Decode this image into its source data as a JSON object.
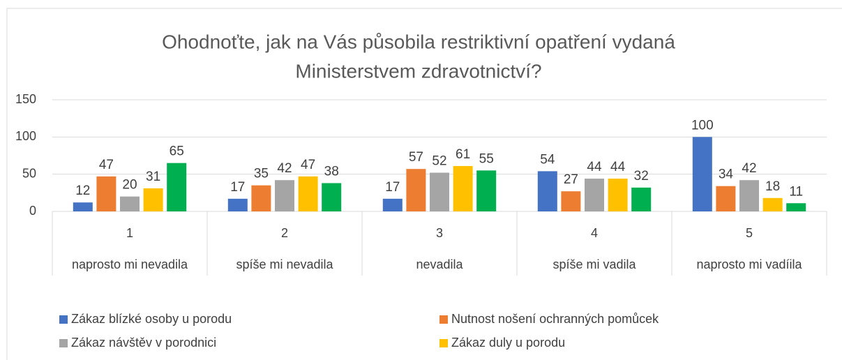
{
  "chart_data": {
    "type": "bar",
    "title": [
      "Ohodnoťte, jak na Vás působila restriktivní opatření vydaná",
      "Ministerstvem zdravotnictví?"
    ],
    "categories": [
      "1",
      "2",
      "3",
      "4",
      "5"
    ],
    "subcategories": [
      "naprosto mi nevadila",
      "spíše mi nevadila",
      "nevadila",
      "spíše mi vadila",
      "naprosto mi vadíila"
    ],
    "series": [
      {
        "name": "Zákaz blízké osoby u porodu",
        "color": "#4472c4",
        "values": [
          12,
          17,
          17,
          54,
          100
        ]
      },
      {
        "name": "Nutnost nošení ochranných pomůcek",
        "color": "#ed7d31",
        "values": [
          47,
          35,
          57,
          27,
          34
        ]
      },
      {
        "name": "Zákaz návštěv v porodnici",
        "color": "#a5a5a5",
        "values": [
          20,
          42,
          52,
          44,
          42
        ]
      },
      {
        "name": "Zákaz duly u porodu",
        "color": "#ffc000",
        "values": [
          31,
          47,
          61,
          44,
          18
        ]
      },
      {
        "color": "#00b050",
        "values": [
          65,
          38,
          55,
          32,
          11
        ]
      }
    ],
    "ylim": [
      0,
      150
    ],
    "yticks": [
      0,
      50,
      100,
      150
    ],
    "grid": true
  }
}
